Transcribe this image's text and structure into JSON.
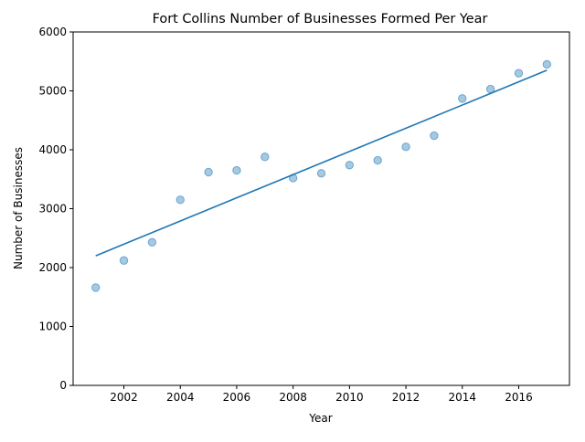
{
  "chart_data": {
    "type": "scatter",
    "title": "Fort Collins Number of Businesses Formed Per Year",
    "xlabel": "Year",
    "ylabel": "Number of Businesses",
    "xlim": [
      2000.2,
      2017.8
    ],
    "ylim": [
      0,
      6000
    ],
    "x_ticks": [
      2002,
      2004,
      2006,
      2008,
      2010,
      2012,
      2014,
      2016
    ],
    "x_tick_labels": [
      "2002",
      "2004",
      "2006",
      "2008",
      "2010",
      "2012",
      "2014",
      "2016"
    ],
    "y_ticks": [
      0,
      1000,
      2000,
      3000,
      4000,
      5000,
      6000
    ],
    "y_tick_labels": [
      "0",
      "1000",
      "2000",
      "3000",
      "4000",
      "5000",
      "6000"
    ],
    "grid": false,
    "series": [
      {
        "kind": "scatter",
        "color": "#1f77b4",
        "opacity": 0.4,
        "x": [
          2001,
          2002,
          2003,
          2004,
          2005,
          2006,
          2007,
          2008,
          2009,
          2010,
          2011,
          2012,
          2013,
          2014,
          2015,
          2016,
          2017
        ],
        "y": [
          1660,
          2120,
          2430,
          3150,
          3620,
          3650,
          3880,
          3520,
          3600,
          3740,
          3820,
          4050,
          4240,
          4870,
          5030,
          5300,
          5450
        ]
      },
      {
        "kind": "line",
        "color": "#1f77b4",
        "x": [
          2001,
          2017
        ],
        "y": [
          2200,
          5350
        ]
      }
    ]
  }
}
